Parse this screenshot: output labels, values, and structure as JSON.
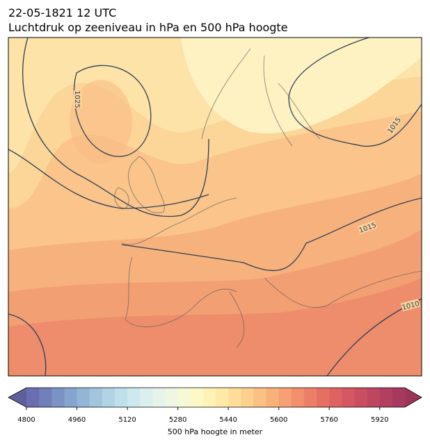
{
  "header": {
    "title_line1": "22-05-1821 12 UTC",
    "title_line2": "Luchtdruk op zeeniveau in hPa en 500 hPa hoogte"
  },
  "contour_labels": [
    "1025",
    "1015",
    "1015",
    "1010"
  ],
  "colorbar": {
    "label": "500 hPa hoogte in meter",
    "lim": [
      4800,
      6000
    ],
    "ticks": [
      4800,
      4960,
      5120,
      5280,
      5440,
      5600,
      5760,
      5920
    ],
    "under_color": "#5f5f9e",
    "over_color": "#9d3358",
    "colors": [
      "#6b6db1",
      "#717fbb",
      "#7b92c4",
      "#86a4cd",
      "#93b5d6",
      "#a2c5de",
      "#b0d3e5",
      "#bfdfeb",
      "#cde8ee",
      "#dbefee",
      "#e6f3eb",
      "#eff7e2",
      "#f7f9d6",
      "#fdf8c6",
      "#fef2b6",
      "#fee9a7",
      "#fedd9a",
      "#fdd08d",
      "#fcc182",
      "#f9b17a",
      "#f6a073",
      "#f28f6d",
      "#ed7f68",
      "#e66f64",
      "#de6262",
      "#d45762",
      "#c94e62",
      "#be4661",
      "#b33f60",
      "#a8395e"
    ]
  }
}
